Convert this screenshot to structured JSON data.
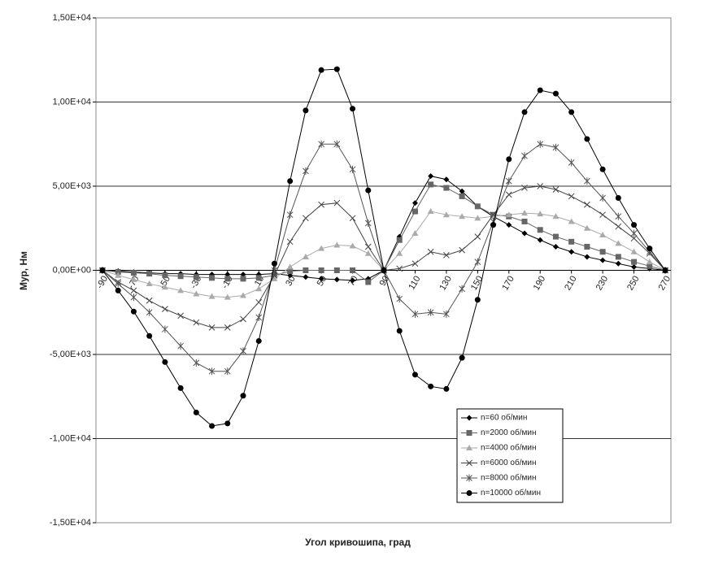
{
  "chart_data": {
    "type": "line",
    "x_label": "Угол кривошипа, град",
    "y_label": "Мур, Нм",
    "x": [
      -90,
      -80,
      -70,
      -60,
      -50,
      -40,
      -30,
      -20,
      -10,
      0,
      10,
      20,
      30,
      40,
      50,
      60,
      70,
      80,
      90,
      100,
      110,
      120,
      130,
      140,
      150,
      160,
      170,
      180,
      190,
      200,
      210,
      220,
      230,
      240,
      250,
      260,
      270
    ],
    "xlim": [
      -90,
      270
    ],
    "xticks": [
      -90,
      -70,
      -50,
      -30,
      -10,
      10,
      30,
      50,
      70,
      90,
      110,
      130,
      150,
      170,
      190,
      210,
      230,
      250,
      270
    ],
    "ylim": [
      -15000,
      15000
    ],
    "yticks": [
      {
        "value": -15000,
        "label": "-1,50E+04"
      },
      {
        "value": -10000,
        "label": "-1,00E+04"
      },
      {
        "value": -5000,
        "label": "-5,00E+03"
      },
      {
        "value": 0,
        "label": "0,00E+00"
      },
      {
        "value": 5000,
        "label": "5,00E+03"
      },
      {
        "value": 10000,
        "label": "1,00E+04"
      },
      {
        "value": 15000,
        "label": "1,50E+04"
      }
    ],
    "grid": true,
    "legend": "lower right",
    "series": [
      {
        "name": "n=60 об/мин",
        "color": "#000000",
        "marker": "diamond",
        "values": [
          0,
          -50,
          -100,
          -150,
          -200,
          -200,
          -250,
          -250,
          -250,
          -250,
          -250,
          -200,
          -300,
          -400,
          -500,
          -550,
          -600,
          -500,
          0,
          2000,
          4000,
          5600,
          5400,
          4700,
          3800,
          3200,
          2700,
          2200,
          1800,
          1400,
          1100,
          800,
          600,
          400,
          200,
          100,
          0
        ]
      },
      {
        "name": "n=2000 об/мин",
        "color": "#666666",
        "marker": "square",
        "values": [
          0,
          -100,
          -150,
          -200,
          -300,
          -350,
          -400,
          -450,
          -500,
          -500,
          -450,
          -300,
          -50,
          0,
          0,
          0,
          0,
          -700,
          0,
          1800,
          3500,
          5100,
          4900,
          4400,
          3800,
          3300,
          3200,
          2900,
          2400,
          2000,
          1700,
          1400,
          1100,
          800,
          500,
          250,
          0
        ]
      },
      {
        "name": "n=4000 об/мин",
        "color": "#aaaaaa",
        "marker": "triangle",
        "values": [
          0,
          -300,
          -550,
          -800,
          -1000,
          -1200,
          -1400,
          -1550,
          -1600,
          -1500,
          -1100,
          -500,
          200,
          800,
          1300,
          1500,
          1450,
          1000,
          0,
          1000,
          2200,
          3500,
          3300,
          3200,
          3100,
          3200,
          3300,
          3400,
          3350,
          3200,
          2900,
          2500,
          2100,
          1600,
          1100,
          500,
          0
        ]
      },
      {
        "name": "n=6000 об/мин",
        "color": "#444444",
        "marker": "x",
        "values": [
          0,
          -700,
          -1200,
          -1800,
          -2300,
          -2700,
          -3100,
          -3400,
          -3400,
          -2900,
          -1900,
          -300,
          1700,
          3100,
          3900,
          4000,
          3100,
          1400,
          0,
          100,
          400,
          1100,
          900,
          1200,
          2000,
          3300,
          4500,
          4900,
          5000,
          4800,
          4400,
          3900,
          3300,
          2600,
          1900,
          1000,
          0
        ]
      },
      {
        "name": "n=8000 об/мин",
        "color": "#555555",
        "marker": "star",
        "values": [
          0,
          -800,
          -1600,
          -2500,
          -3500,
          -4500,
          -5500,
          -6000,
          -6000,
          -4800,
          -2800,
          0,
          3300,
          5900,
          7500,
          7500,
          6000,
          2800,
          0,
          -1700,
          -2600,
          -2500,
          -2600,
          -1100,
          500,
          2900,
          5300,
          6800,
          7500,
          7300,
          6400,
          5300,
          4300,
          3200,
          2200,
          1100,
          0
        ]
      },
      {
        "name": "n=10000 об/мин",
        "color": "#000000",
        "marker": "circle",
        "values": [
          0,
          -1200,
          -2450,
          -3900,
          -5450,
          -7000,
          -8450,
          -9250,
          -9100,
          -7450,
          -4200,
          400,
          5300,
          9500,
          11900,
          11950,
          9600,
          4750,
          0,
          -3600,
          -6200,
          -6900,
          -7050,
          -5200,
          -1750,
          2700,
          6600,
          9400,
          10700,
          10500,
          9400,
          7800,
          6000,
          4300,
          2700,
          1300,
          0
        ]
      }
    ]
  }
}
